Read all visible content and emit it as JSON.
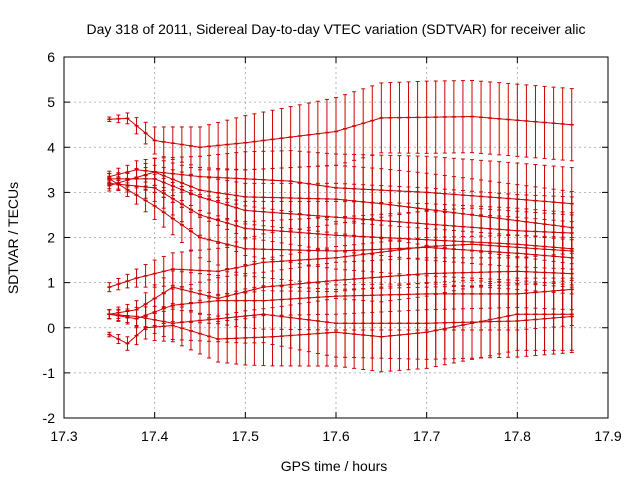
{
  "chart_data": {
    "type": "line",
    "title": "Day 318 of 2011, Sidereal Day-to-day VTEC variation (SDTVAR) for receiver alic",
    "xlabel": "GPS time / hours",
    "ylabel": "SDTVAR / TECUs",
    "xlim": [
      17.3,
      17.9
    ],
    "ylim": [
      -2,
      6
    ],
    "xticks": [
      "17.3",
      "17.4",
      "17.5",
      "17.6",
      "17.7",
      "17.8",
      "17.9"
    ],
    "yticks": [
      "-2",
      "-1",
      "0",
      "1",
      "2",
      "3",
      "4",
      "5",
      "6"
    ],
    "grid": true,
    "color": "#cc0000",
    "x_start": 17.35,
    "x_end": 17.86,
    "x_step": 0.01,
    "series": [
      {
        "name": "s1",
        "anchors": [
          [
            17.35,
            4.62
          ],
          [
            17.37,
            4.64
          ],
          [
            17.4,
            4.15
          ],
          [
            17.45,
            4.0
          ],
          [
            17.5,
            4.1
          ],
          [
            17.6,
            4.35
          ],
          [
            17.65,
            4.65
          ],
          [
            17.75,
            4.68
          ],
          [
            17.86,
            4.5
          ]
        ],
        "err": [
          [
            17.35,
            0.05
          ],
          [
            17.37,
            0.12
          ],
          [
            17.4,
            0.3
          ],
          [
            17.5,
            0.6
          ],
          [
            17.6,
            0.75
          ],
          [
            17.7,
            0.8
          ],
          [
            17.86,
            0.8
          ]
        ]
      },
      {
        "name": "s2",
        "anchors": [
          [
            17.35,
            3.35
          ],
          [
            17.38,
            3.5
          ],
          [
            17.45,
            3.35
          ],
          [
            17.55,
            3.25
          ],
          [
            17.6,
            3.1
          ],
          [
            17.65,
            3.05
          ],
          [
            17.7,
            3.0
          ],
          [
            17.8,
            2.85
          ],
          [
            17.86,
            2.75
          ]
        ],
        "err": [
          [
            17.35,
            0.12
          ],
          [
            17.37,
            0.15
          ],
          [
            17.4,
            0.3
          ],
          [
            17.5,
            0.6
          ],
          [
            17.6,
            0.75
          ],
          [
            17.7,
            0.8
          ],
          [
            17.86,
            0.8
          ]
        ]
      },
      {
        "name": "s3",
        "anchors": [
          [
            17.35,
            3.15
          ],
          [
            17.4,
            3.45
          ],
          [
            17.45,
            3.05
          ],
          [
            17.5,
            2.9
          ],
          [
            17.6,
            2.85
          ],
          [
            17.65,
            2.75
          ],
          [
            17.75,
            2.5
          ],
          [
            17.86,
            2.22
          ]
        ],
        "err": [
          [
            17.35,
            0.12
          ],
          [
            17.37,
            0.15
          ],
          [
            17.4,
            0.3
          ],
          [
            17.5,
            0.6
          ],
          [
            17.6,
            0.75
          ],
          [
            17.7,
            0.8
          ],
          [
            17.86,
            0.8
          ]
        ]
      },
      {
        "name": "s4",
        "anchors": [
          [
            17.35,
            3.3
          ],
          [
            17.4,
            3.3
          ],
          [
            17.45,
            2.9
          ],
          [
            17.5,
            2.6
          ],
          [
            17.6,
            2.45
          ],
          [
            17.7,
            2.3
          ],
          [
            17.8,
            2.15
          ],
          [
            17.86,
            2.1
          ]
        ],
        "err": [
          [
            17.35,
            0.12
          ],
          [
            17.37,
            0.15
          ],
          [
            17.4,
            0.3
          ],
          [
            17.5,
            0.6
          ],
          [
            17.6,
            0.75
          ],
          [
            17.7,
            0.8
          ],
          [
            17.86,
            0.8
          ]
        ]
      },
      {
        "name": "s5",
        "anchors": [
          [
            17.35,
            3.2
          ],
          [
            17.4,
            3.1
          ],
          [
            17.45,
            2.5
          ],
          [
            17.5,
            2.2
          ],
          [
            17.6,
            2.05
          ],
          [
            17.7,
            1.95
          ],
          [
            17.8,
            1.85
          ],
          [
            17.86,
            1.75
          ]
        ],
        "err": [
          [
            17.35,
            0.12
          ],
          [
            17.37,
            0.15
          ],
          [
            17.4,
            0.3
          ],
          [
            17.5,
            0.6
          ],
          [
            17.6,
            0.75
          ],
          [
            17.7,
            0.8
          ],
          [
            17.86,
            0.8
          ]
        ]
      },
      {
        "name": "s6",
        "anchors": [
          [
            17.35,
            3.3
          ],
          [
            17.4,
            2.7
          ],
          [
            17.45,
            2.0
          ],
          [
            17.5,
            1.75
          ],
          [
            17.6,
            1.7
          ],
          [
            17.7,
            1.78
          ],
          [
            17.8,
            1.65
          ],
          [
            17.86,
            1.55
          ]
        ],
        "err": [
          [
            17.35,
            0.12
          ],
          [
            17.37,
            0.15
          ],
          [
            17.4,
            0.3
          ],
          [
            17.5,
            0.6
          ],
          [
            17.6,
            0.75
          ],
          [
            17.7,
            0.8
          ],
          [
            17.86,
            0.8
          ]
        ]
      },
      {
        "name": "s7",
        "anchors": [
          [
            17.35,
            0.9
          ],
          [
            17.38,
            1.1
          ],
          [
            17.42,
            1.3
          ],
          [
            17.47,
            1.25
          ],
          [
            17.52,
            1.45
          ],
          [
            17.6,
            1.55
          ],
          [
            17.7,
            1.8
          ],
          [
            17.75,
            1.85
          ],
          [
            17.86,
            1.7
          ]
        ],
        "err": [
          [
            17.35,
            0.1
          ],
          [
            17.37,
            0.15
          ],
          [
            17.4,
            0.3
          ],
          [
            17.5,
            0.6
          ],
          [
            17.6,
            0.75
          ],
          [
            17.7,
            0.8
          ],
          [
            17.86,
            0.8
          ]
        ]
      },
      {
        "name": "s8",
        "anchors": [
          [
            17.35,
            0.3
          ],
          [
            17.38,
            0.4
          ],
          [
            17.42,
            0.9
          ],
          [
            17.47,
            0.65
          ],
          [
            17.52,
            0.9
          ],
          [
            17.6,
            1.05
          ],
          [
            17.7,
            1.2
          ],
          [
            17.8,
            1.25
          ],
          [
            17.86,
            1.2
          ]
        ],
        "err": [
          [
            17.35,
            0.1
          ],
          [
            17.37,
            0.15
          ],
          [
            17.4,
            0.3
          ],
          [
            17.5,
            0.6
          ],
          [
            17.6,
            0.75
          ],
          [
            17.7,
            0.8
          ],
          [
            17.86,
            0.8
          ]
        ]
      },
      {
        "name": "s9",
        "anchors": [
          [
            17.35,
            0.3
          ],
          [
            17.38,
            0.2
          ],
          [
            17.42,
            0.5
          ],
          [
            17.47,
            0.6
          ],
          [
            17.52,
            0.6
          ],
          [
            17.6,
            0.7
          ],
          [
            17.7,
            0.75
          ],
          [
            17.8,
            0.75
          ],
          [
            17.86,
            0.85
          ]
        ],
        "err": [
          [
            17.35,
            0.1
          ],
          [
            17.37,
            0.15
          ],
          [
            17.4,
            0.3
          ],
          [
            17.5,
            0.6
          ],
          [
            17.6,
            0.75
          ],
          [
            17.7,
            0.8
          ],
          [
            17.86,
            0.8
          ]
        ]
      },
      {
        "name": "s10",
        "anchors": [
          [
            17.35,
            0.3
          ],
          [
            17.38,
            0.25
          ],
          [
            17.42,
            0.1
          ],
          [
            17.47,
            0.2
          ],
          [
            17.52,
            0.3
          ],
          [
            17.6,
            0.1
          ],
          [
            17.7,
            0.1
          ],
          [
            17.8,
            0.15
          ],
          [
            17.86,
            0.25
          ]
        ],
        "err": [
          [
            17.35,
            0.1
          ],
          [
            17.37,
            0.15
          ],
          [
            17.4,
            0.3
          ],
          [
            17.5,
            0.6
          ],
          [
            17.6,
            0.75
          ],
          [
            17.7,
            0.8
          ],
          [
            17.86,
            0.8
          ]
        ]
      },
      {
        "name": "s11",
        "anchors": [
          [
            17.35,
            -0.15
          ],
          [
            17.37,
            -0.35
          ],
          [
            17.39,
            0.0
          ],
          [
            17.42,
            0.05
          ],
          [
            17.47,
            -0.25
          ],
          [
            17.53,
            -0.2
          ],
          [
            17.6,
            -0.1
          ],
          [
            17.65,
            -0.2
          ],
          [
            17.7,
            -0.1
          ],
          [
            17.8,
            0.3
          ],
          [
            17.86,
            0.3
          ]
        ],
        "err": [
          [
            17.35,
            0.05
          ],
          [
            17.37,
            0.15
          ],
          [
            17.4,
            0.3
          ],
          [
            17.5,
            0.6
          ],
          [
            17.6,
            0.75
          ],
          [
            17.7,
            0.8
          ],
          [
            17.86,
            0.8
          ]
        ]
      }
    ]
  }
}
